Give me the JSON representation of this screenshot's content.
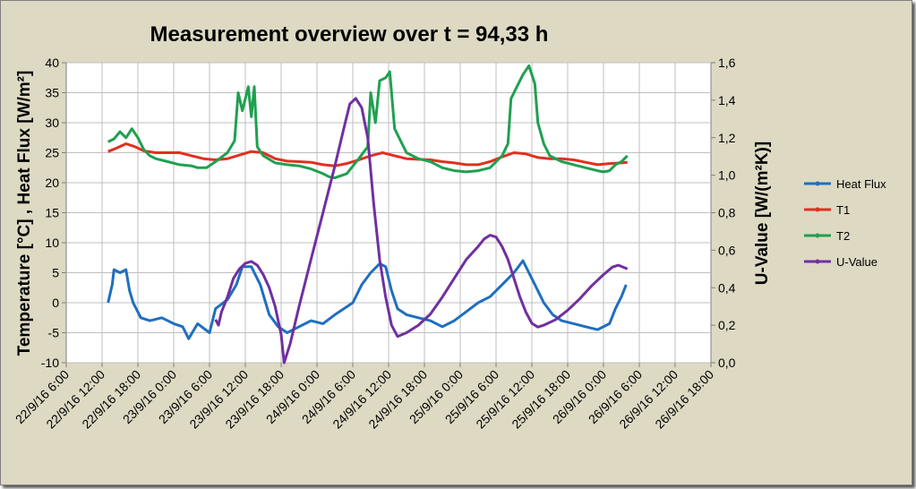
{
  "chart_data": {
    "type": "line",
    "title": "Measurement overview over t = 94,33 h",
    "ylabel": "Temperature [°C] ,  Heat Flux [W/m²]",
    "y2label": "U-Value [W/(m²K)]",
    "ylim": [
      -10,
      40
    ],
    "yticks": [
      "-10",
      "-5",
      "0",
      "5",
      "10",
      "15",
      "20",
      "25",
      "30",
      "35",
      "40"
    ],
    "y2lim": [
      0,
      1.6
    ],
    "y2ticks": [
      "0,0",
      "0,2",
      "0,4",
      "0,6",
      "0,8",
      "1,0",
      "1,2",
      "1,4",
      "1,6"
    ],
    "xlim_hours": [
      0,
      108
    ],
    "xticks": [
      "22/9/16 6:00",
      "22/9/16 12:00",
      "22/9/16 18:00",
      "23/9/16 0:00",
      "23/9/16 6:00",
      "23/9/16 12:00",
      "23/9/16 18:00",
      "24/9/16 0:00",
      "24/9/16 6:00",
      "24/9/16 12:00",
      "24/9/16 18:00",
      "25/9/16 0:00",
      "25/9/16 6:00",
      "25/9/16 12:00",
      "25/9/16 18:00",
      "26/9/16 0:00",
      "26/9/16 6:00",
      "26/9/16 12:00",
      "26/9/16 18:00"
    ],
    "legend_position": "right",
    "series": [
      {
        "name": "Heat Flux",
        "axis": "left",
        "color": "#1f6fbf",
        "points": [
          [
            7,
            0
          ],
          [
            7.7,
            3
          ],
          [
            8,
            5.5
          ],
          [
            9,
            5
          ],
          [
            10,
            5.5
          ],
          [
            10.6,
            2
          ],
          [
            11.2,
            0
          ],
          [
            12.5,
            -2.5
          ],
          [
            14,
            -3
          ],
          [
            16,
            -2.5
          ],
          [
            18,
            -3.5
          ],
          [
            19.5,
            -4
          ],
          [
            20.5,
            -6
          ],
          [
            22,
            -3.5
          ],
          [
            24,
            -5
          ],
          [
            25,
            -1
          ],
          [
            27,
            0.5
          ],
          [
            28.5,
            3
          ],
          [
            29.5,
            6
          ],
          [
            31,
            6
          ],
          [
            32.5,
            3
          ],
          [
            34,
            -2
          ],
          [
            35.5,
            -4
          ],
          [
            37,
            -5
          ],
          [
            39,
            -4
          ],
          [
            41,
            -3
          ],
          [
            43,
            -3.5
          ],
          [
            45,
            -2
          ],
          [
            46.5,
            -1
          ],
          [
            48,
            0
          ],
          [
            49.5,
            3
          ],
          [
            51,
            5
          ],
          [
            52.5,
            6.5
          ],
          [
            53.5,
            6
          ],
          [
            54.5,
            2
          ],
          [
            55.5,
            -1
          ],
          [
            57,
            -2
          ],
          [
            59,
            -2.5
          ],
          [
            61,
            -3
          ],
          [
            63,
            -4
          ],
          [
            65,
            -3
          ],
          [
            67,
            -1.5
          ],
          [
            69,
            0
          ],
          [
            71,
            1
          ],
          [
            73,
            3
          ],
          [
            75,
            5
          ],
          [
            76.5,
            7
          ],
          [
            77.5,
            5
          ],
          [
            79,
            2
          ],
          [
            80,
            0
          ],
          [
            81.5,
            -2
          ],
          [
            83,
            -3
          ],
          [
            85,
            -3.5
          ],
          [
            87,
            -4
          ],
          [
            89,
            -4.5
          ],
          [
            91,
            -3.5
          ],
          [
            92,
            -1
          ],
          [
            93,
            1
          ],
          [
            93.8,
            3
          ]
        ]
      },
      {
        "name": "T1",
        "axis": "left",
        "color": "#e03020",
        "points": [
          [
            7,
            25.2
          ],
          [
            8.5,
            25.8
          ],
          [
            10,
            26.5
          ],
          [
            11.5,
            26
          ],
          [
            13,
            25.3
          ],
          [
            15,
            25
          ],
          [
            17,
            25
          ],
          [
            19,
            25
          ],
          [
            21,
            24.5
          ],
          [
            23,
            24
          ],
          [
            25,
            23.8
          ],
          [
            27,
            24
          ],
          [
            29,
            24.6
          ],
          [
            31,
            25.2
          ],
          [
            33,
            25
          ],
          [
            35,
            24
          ],
          [
            37,
            23.6
          ],
          [
            39,
            23.5
          ],
          [
            41,
            23.4
          ],
          [
            43,
            23
          ],
          [
            45,
            22.8
          ],
          [
            47,
            23.2
          ],
          [
            49,
            23.8
          ],
          [
            51,
            24.5
          ],
          [
            53,
            25
          ],
          [
            55,
            24.5
          ],
          [
            57,
            24
          ],
          [
            59,
            23.9
          ],
          [
            61,
            23.8
          ],
          [
            63,
            23.5
          ],
          [
            65,
            23.3
          ],
          [
            67,
            23
          ],
          [
            69,
            23
          ],
          [
            71,
            23.5
          ],
          [
            73,
            24.3
          ],
          [
            75,
            25
          ],
          [
            77,
            24.8
          ],
          [
            79,
            24.2
          ],
          [
            81,
            24
          ],
          [
            83,
            24
          ],
          [
            85,
            23.8
          ],
          [
            87,
            23.4
          ],
          [
            89,
            23
          ],
          [
            91,
            23.2
          ],
          [
            93,
            23.3
          ],
          [
            94,
            23.4
          ]
        ]
      },
      {
        "name": "T2",
        "axis": "left",
        "color": "#20a050",
        "points": [
          [
            7,
            26.8
          ],
          [
            8,
            27.3
          ],
          [
            9,
            28.5
          ],
          [
            10,
            27.5
          ],
          [
            11,
            29
          ],
          [
            12,
            27.5
          ],
          [
            13,
            25.5
          ],
          [
            14,
            24.5
          ],
          [
            15,
            24
          ],
          [
            17,
            23.5
          ],
          [
            19,
            23
          ],
          [
            21,
            22.8
          ],
          [
            22,
            22.5
          ],
          [
            23.5,
            22.5
          ],
          [
            25,
            23.5
          ],
          [
            27,
            25
          ],
          [
            28.2,
            27
          ],
          [
            28.8,
            35
          ],
          [
            29.5,
            32
          ],
          [
            30.5,
            36
          ],
          [
            31,
            31
          ],
          [
            31.5,
            36
          ],
          [
            32,
            26
          ],
          [
            33,
            24.5
          ],
          [
            35,
            23.3
          ],
          [
            37,
            23
          ],
          [
            39,
            22.8
          ],
          [
            41,
            22.3
          ],
          [
            43,
            21.5
          ],
          [
            44,
            21
          ],
          [
            45,
            20.8
          ],
          [
            47,
            21.5
          ],
          [
            49,
            24
          ],
          [
            50.5,
            26
          ],
          [
            51,
            35
          ],
          [
            51.8,
            30
          ],
          [
            52.5,
            37
          ],
          [
            53.5,
            37.5
          ],
          [
            54.2,
            38.5
          ],
          [
            55,
            29
          ],
          [
            56,
            27
          ],
          [
            57,
            25
          ],
          [
            59,
            24
          ],
          [
            61,
            23.5
          ],
          [
            63,
            22.5
          ],
          [
            65,
            22
          ],
          [
            67,
            21.8
          ],
          [
            69,
            22
          ],
          [
            71,
            22.5
          ],
          [
            73,
            24.5
          ],
          [
            74,
            26.5
          ],
          [
            74.5,
            34
          ],
          [
            75.5,
            36
          ],
          [
            76.5,
            38
          ],
          [
            77.5,
            39.5
          ],
          [
            78.5,
            36.5
          ],
          [
            79,
            30
          ],
          [
            80,
            26.5
          ],
          [
            81,
            24.5
          ],
          [
            83,
            23.5
          ],
          [
            85,
            23
          ],
          [
            87,
            22.5
          ],
          [
            89,
            22
          ],
          [
            90,
            21.8
          ],
          [
            91,
            22
          ],
          [
            92,
            23
          ],
          [
            93,
            23.5
          ],
          [
            94,
            24.5
          ]
        ]
      },
      {
        "name": "U-Value",
        "axis": "right",
        "color": "#7030a0",
        "points": [
          [
            25,
            0.23
          ],
          [
            25.5,
            0.2
          ],
          [
            26,
            0.27
          ],
          [
            27,
            0.35
          ],
          [
            28,
            0.45
          ],
          [
            29,
            0.5
          ],
          [
            30,
            0.53
          ],
          [
            31,
            0.54
          ],
          [
            32,
            0.52
          ],
          [
            33,
            0.47
          ],
          [
            34,
            0.4
          ],
          [
            35,
            0.3
          ],
          [
            36,
            0.15
          ],
          [
            36.5,
            0
          ],
          [
            37.5,
            0.1
          ],
          [
            39,
            0.3
          ],
          [
            41,
            0.55
          ],
          [
            43,
            0.8
          ],
          [
            45,
            1.05
          ],
          [
            46.5,
            1.25
          ],
          [
            47.5,
            1.38
          ],
          [
            48.5,
            1.41
          ],
          [
            49.5,
            1.36
          ],
          [
            50.5,
            1.2
          ],
          [
            51.5,
            0.85
          ],
          [
            52.5,
            0.55
          ],
          [
            53.5,
            0.35
          ],
          [
            54.5,
            0.2
          ],
          [
            55.5,
            0.14
          ],
          [
            57,
            0.16
          ],
          [
            59,
            0.2
          ],
          [
            61,
            0.26
          ],
          [
            63,
            0.35
          ],
          [
            65,
            0.45
          ],
          [
            67,
            0.55
          ],
          [
            69,
            0.62
          ],
          [
            70,
            0.66
          ],
          [
            71,
            0.68
          ],
          [
            72,
            0.67
          ],
          [
            73,
            0.62
          ],
          [
            74,
            0.55
          ],
          [
            75,
            0.45
          ],
          [
            76,
            0.35
          ],
          [
            77,
            0.27
          ],
          [
            78,
            0.21
          ],
          [
            79,
            0.19
          ],
          [
            80,
            0.2
          ],
          [
            82,
            0.23
          ],
          [
            84,
            0.28
          ],
          [
            86,
            0.34
          ],
          [
            88,
            0.41
          ],
          [
            90,
            0.47
          ],
          [
            91.5,
            0.51
          ],
          [
            92.5,
            0.52
          ],
          [
            94,
            0.5
          ]
        ]
      }
    ]
  }
}
